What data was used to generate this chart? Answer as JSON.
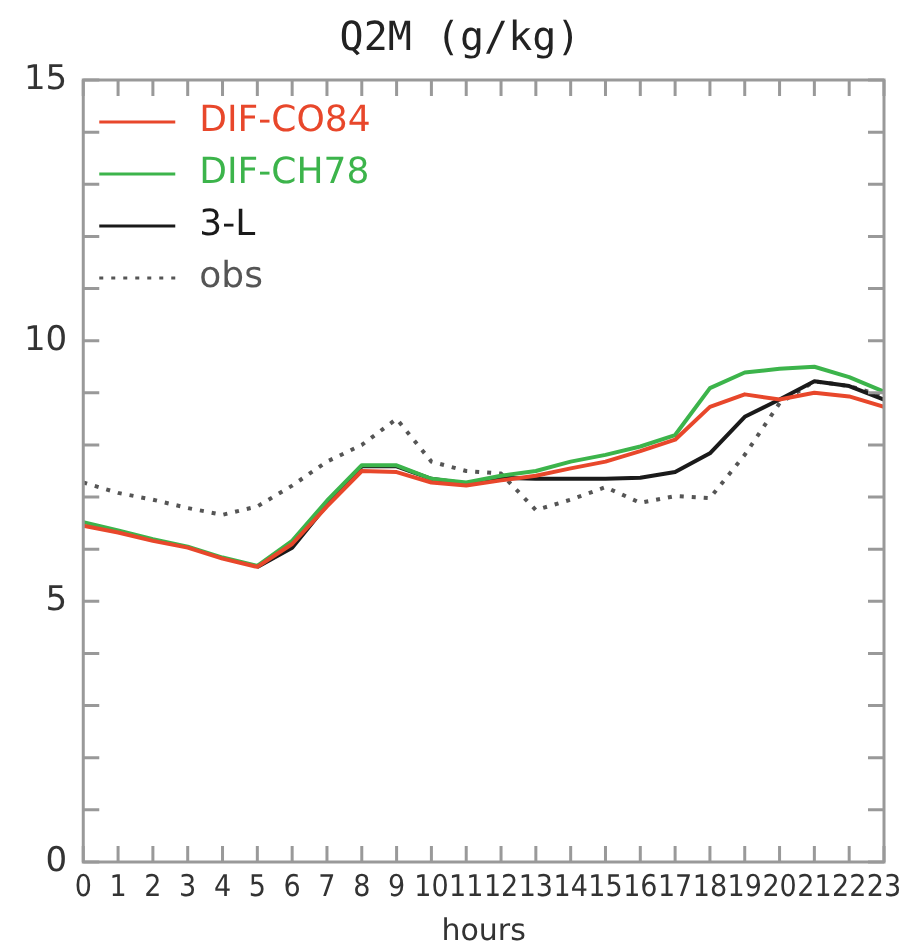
{
  "chart_data": {
    "type": "line",
    "title": "Q2M (g/kg)",
    "xlabel": "hours",
    "x": [
      0,
      1,
      2,
      3,
      4,
      5,
      6,
      7,
      8,
      9,
      10,
      11,
      12,
      13,
      14,
      15,
      16,
      17,
      18,
      19,
      20,
      21,
      22,
      23
    ],
    "series": [
      {
        "name": "DIF-CO84",
        "color": "#e8472b",
        "line_style": "solid",
        "values": [
          6.45,
          6.32,
          6.16,
          6.03,
          5.82,
          5.66,
          6.1,
          6.82,
          7.5,
          7.48,
          7.28,
          7.22,
          7.32,
          7.41,
          7.55,
          7.68,
          7.88,
          8.1,
          8.73,
          8.97,
          8.87,
          9.0,
          8.93,
          8.73
        ]
      },
      {
        "name": "DIF-CH78",
        "color": "#3cb44b",
        "line_style": "solid",
        "values": [
          6.52,
          6.36,
          6.19,
          6.05,
          5.84,
          5.68,
          6.16,
          6.93,
          7.61,
          7.61,
          7.35,
          7.28,
          7.41,
          7.5,
          7.68,
          7.81,
          7.97,
          8.19,
          9.09,
          9.39,
          9.46,
          9.5,
          9.3,
          9.02
        ]
      },
      {
        "name": "3-L",
        "color": "#1a1a1a",
        "line_style": "solid",
        "values": [
          null,
          null,
          null,
          null,
          null,
          5.66,
          6.03,
          6.85,
          7.59,
          7.59,
          7.35,
          7.26,
          7.37,
          7.35,
          7.35,
          7.35,
          7.37,
          7.48,
          7.84,
          8.54,
          8.87,
          9.22,
          9.13,
          8.87
        ]
      },
      {
        "name": "obs",
        "color": "#555555",
        "line_style": "dotted",
        "values": [
          7.28,
          7.08,
          6.95,
          6.79,
          6.66,
          6.82,
          7.22,
          7.68,
          8.0,
          8.5,
          7.68,
          7.5,
          7.45,
          6.75,
          6.95,
          7.19,
          6.89,
          7.02,
          6.98,
          7.81,
          8.8,
          9.22,
          9.13,
          8.93
        ]
      }
    ],
    "xlim": [
      0,
      23
    ],
    "xticks": [
      0,
      1,
      2,
      3,
      4,
      5,
      6,
      7,
      8,
      9,
      10,
      11,
      12,
      13,
      14,
      15,
      16,
      17,
      18,
      19,
      20,
      21,
      22,
      23
    ],
    "ylim": [
      0,
      15
    ],
    "yticks": [
      0,
      {
        "value": 1,
        "label": null
      },
      {
        "value": 2,
        "label": null
      },
      {
        "value": 3,
        "label": null
      },
      {
        "value": 4,
        "label": null
      },
      5,
      {
        "value": 6,
        "label": null
      },
      {
        "value": 7,
        "label": null
      },
      {
        "value": 8,
        "label": null
      },
      {
        "value": 9,
        "label": null
      },
      10,
      {
        "value": 11,
        "label": null
      },
      {
        "value": 12,
        "label": null
      },
      {
        "value": 13,
        "label": null
      },
      {
        "value": 14,
        "label": null
      },
      15
    ],
    "grid": false,
    "legend": "top left",
    "marker": "none"
  }
}
